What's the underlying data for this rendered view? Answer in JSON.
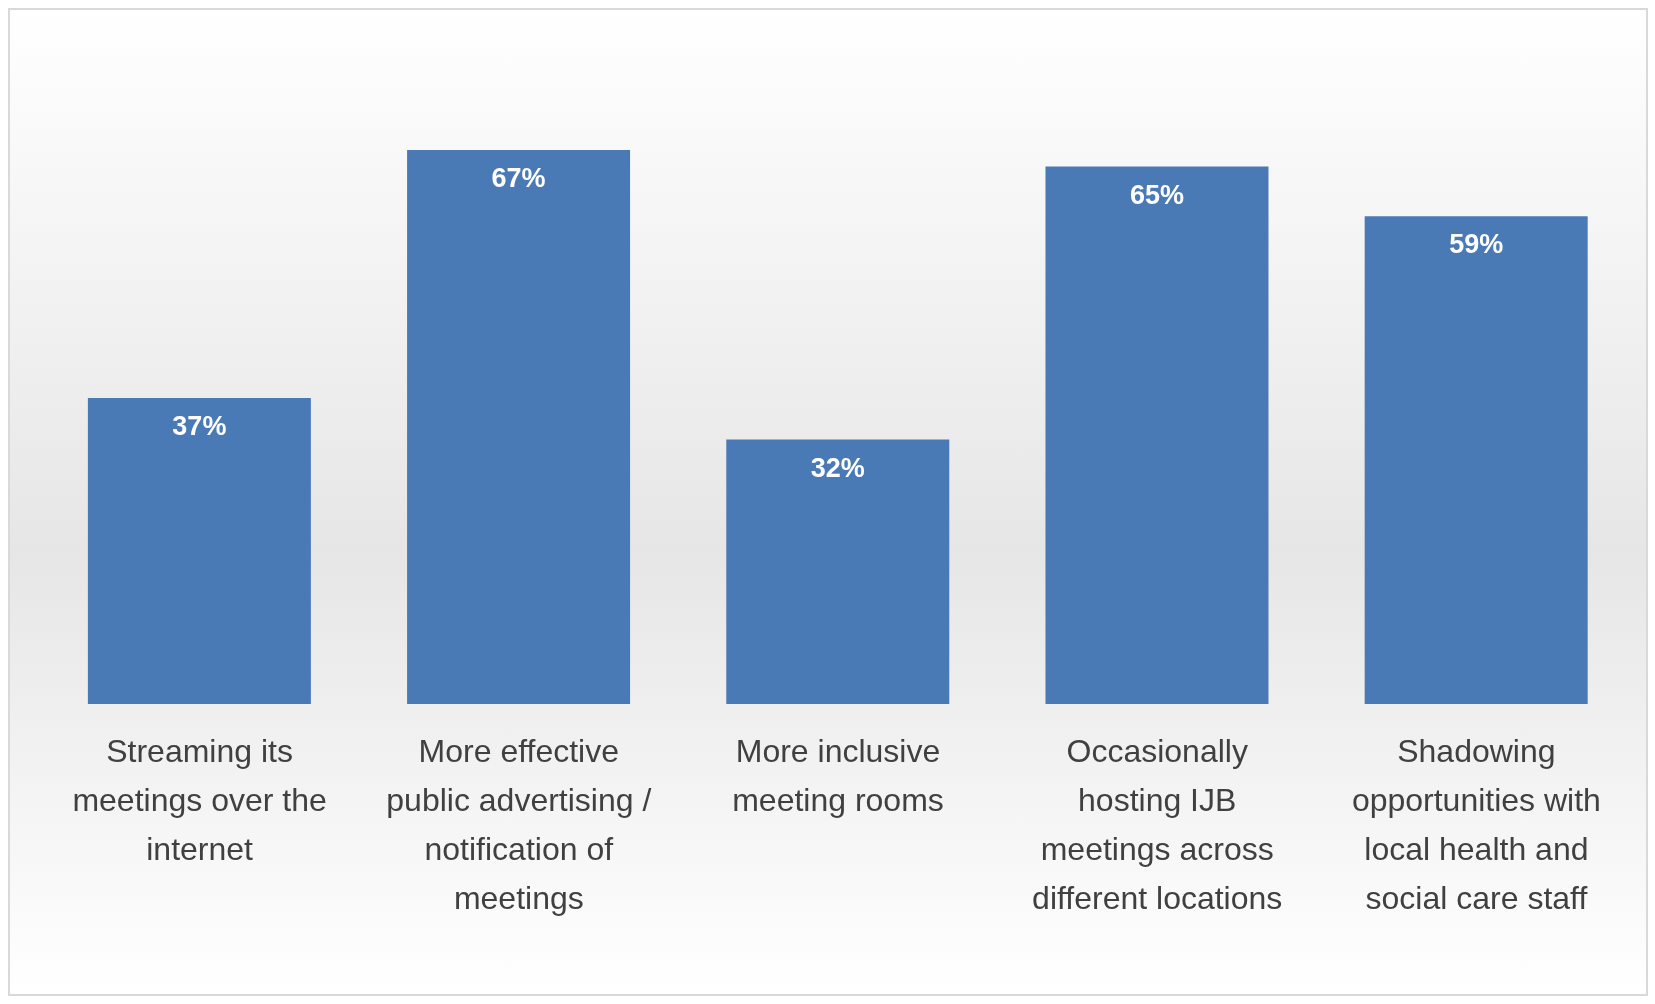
{
  "chart_data": {
    "type": "bar",
    "categories": [
      "Streaming its meetings over the internet",
      "More effective public advertising / notification of meetings",
      "More inclusive meeting rooms",
      "Occasionally hosting IJB meetings across different locations",
      "Shadowing opportunities with local health and social care staff"
    ],
    "values": [
      37,
      67,
      32,
      65,
      59
    ],
    "value_labels": [
      "37%",
      "67%",
      "32%",
      "65%",
      "59%"
    ],
    "color": "#4a7ab5",
    "tick_labels": "x"
  }
}
